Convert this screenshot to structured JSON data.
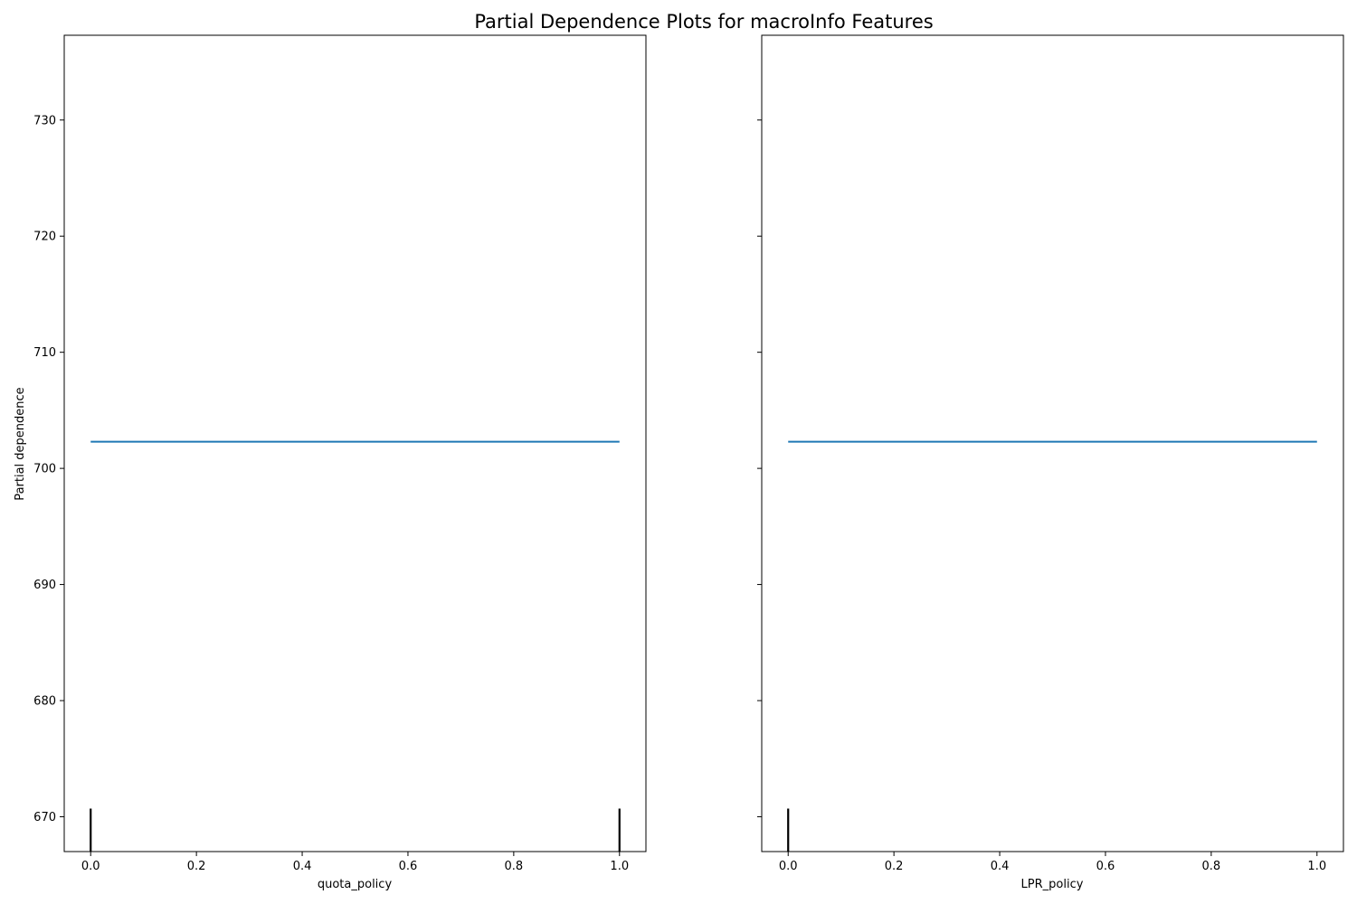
{
  "figure": {
    "title": "Partial Dependence Plots for macroInfo Features"
  },
  "colors": {
    "line": "#1f77b4",
    "rug": "#000000",
    "frame": "#000000"
  },
  "chart_data": [
    {
      "type": "line",
      "xlabel": "quota_policy",
      "ylabel": "Partial dependence",
      "xlim": [
        -0.05,
        1.05
      ],
      "ylim": [
        667.0,
        737.3
      ],
      "xticks": [
        0.0,
        0.2,
        0.4,
        0.6,
        0.8,
        1.0
      ],
      "xtick_labels": [
        "0.0",
        "0.2",
        "0.4",
        "0.6",
        "0.8",
        "1.0"
      ],
      "yticks": [
        670,
        680,
        690,
        700,
        710,
        720,
        730
      ],
      "ytick_labels": [
        "670",
        "680",
        "690",
        "700",
        "710",
        "720",
        "730"
      ],
      "show_ytick_labels": true,
      "grid": false,
      "series": [
        {
          "x": [
            0.0,
            1.0
          ],
          "y": [
            702.3,
            702.3
          ]
        }
      ],
      "rug": {
        "x": [
          0.0,
          1.0
        ],
        "top": 670.7
      }
    },
    {
      "type": "line",
      "xlabel": "LPR_policy",
      "ylabel": "",
      "xlim": [
        -0.05,
        1.05
      ],
      "ylim": [
        667.0,
        737.3
      ],
      "xticks": [
        0.0,
        0.2,
        0.4,
        0.6,
        0.8,
        1.0
      ],
      "xtick_labels": [
        "0.0",
        "0.2",
        "0.4",
        "0.6",
        "0.8",
        "1.0"
      ],
      "yticks": [
        670,
        680,
        690,
        700,
        710,
        720,
        730
      ],
      "ytick_labels": [],
      "show_ytick_labels": false,
      "grid": false,
      "series": [
        {
          "x": [
            0.0,
            1.0
          ],
          "y": [
            702.3,
            702.3
          ]
        }
      ],
      "rug": {
        "x": [
          0.0
        ],
        "top": 670.7
      }
    }
  ]
}
